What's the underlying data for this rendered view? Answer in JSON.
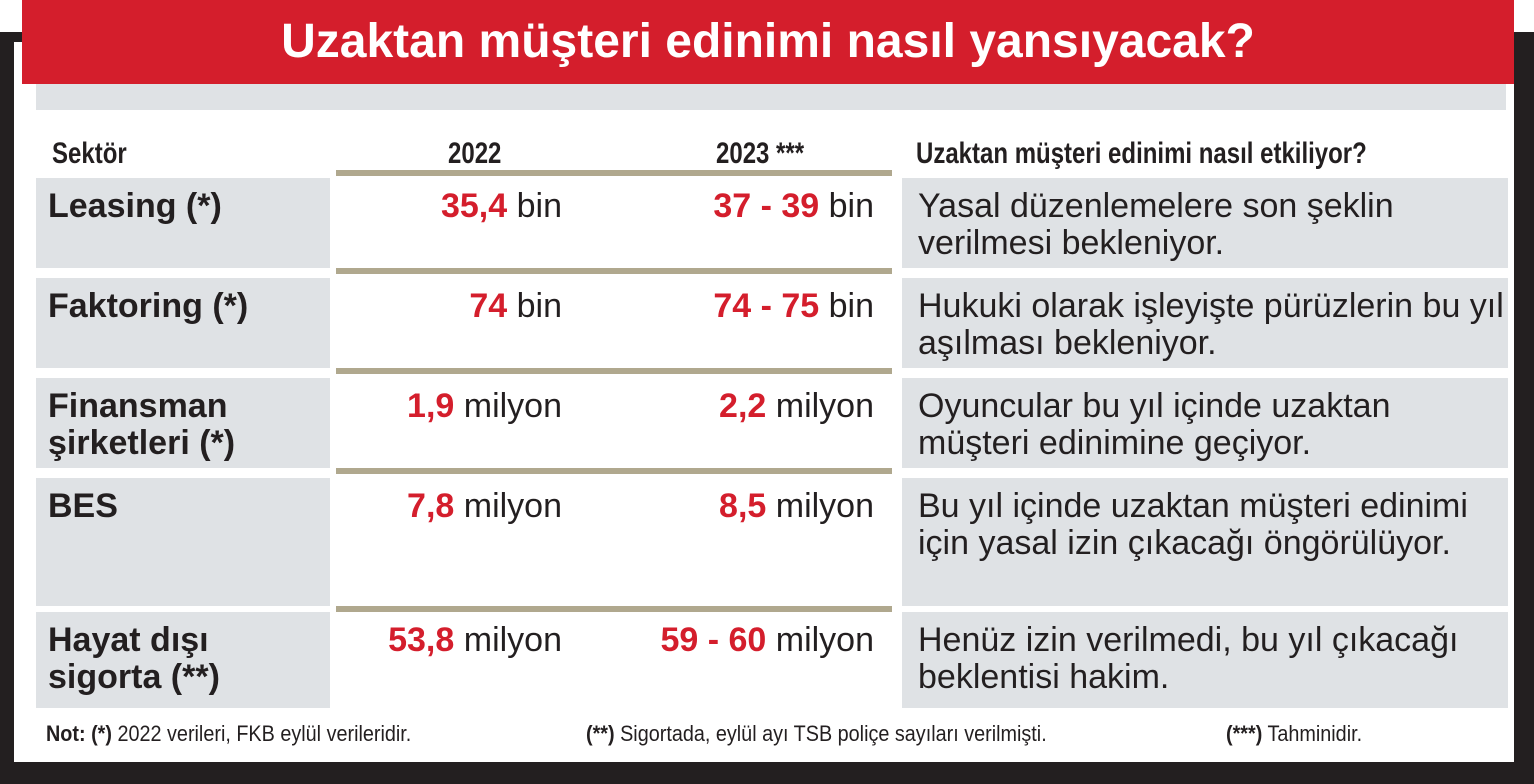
{
  "chart_data": {
    "type": "table",
    "title": "Uzaktan müşteri edinimi nasıl yansıyacak?",
    "columns": [
      "Sektör",
      "2022",
      "2023 ***",
      "Uzaktan müşteri edinimi nasıl etkiliyor?"
    ],
    "rows": [
      {
        "sector": "Leasing  (*)",
        "v2022_num": "35,4",
        "v2022_unit": " bin",
        "v2023_num": "37 - 39",
        "v2023_unit": " bin",
        "note": "Yasal düzenlemelere son şeklin verilmesi bekleniyor."
      },
      {
        "sector": "Faktoring  (*)",
        "v2022_num": "74",
        "v2022_unit": " bin",
        "v2023_num": "74 - 75",
        "v2023_unit": " bin",
        "note": "Hukuki olarak işleyişte pürüzlerin bu yıl aşılması bekleniyor."
      },
      {
        "sector": "Finansman şirketleri  (*)",
        "v2022_num": "1,9",
        "v2022_unit": " milyon",
        "v2023_num": "2,2",
        "v2023_unit": " milyon",
        "note": "Oyuncular bu yıl içinde uzaktan müşteri edinimine geçiyor."
      },
      {
        "sector": "BES",
        "v2022_num": "7,8",
        "v2022_unit": " milyon",
        "v2023_num": "8,5",
        "v2023_unit": " milyon",
        "note": "Bu yıl içinde uzaktan müşteri edinimi için yasal izin çıkacağı öngörülüyor."
      },
      {
        "sector": "Hayat dışı sigorta  (**)",
        "v2022_num": "53,8",
        "v2022_unit": " milyon",
        "v2023_num": "59 - 60",
        "v2023_unit": " milyon",
        "note": "Henüz izin verilmedi, bu yıl çıkacağı beklentisi hakim."
      }
    ],
    "footnotes": [
      {
        "mark": "Not: (*)",
        "text": " 2022 verileri, FKB eylül verileridir."
      },
      {
        "mark": "(**)",
        "text": " Sigortada, eylül ayı TSB poliçe sayıları verilmişti."
      },
      {
        "mark": "(***)",
        "text": " Tahminidir."
      }
    ]
  },
  "colors": {
    "accent_red": "#d41e2c",
    "frame": "#231f20",
    "cell_gray": "#dfe2e5",
    "separator": "#b0a88e"
  }
}
